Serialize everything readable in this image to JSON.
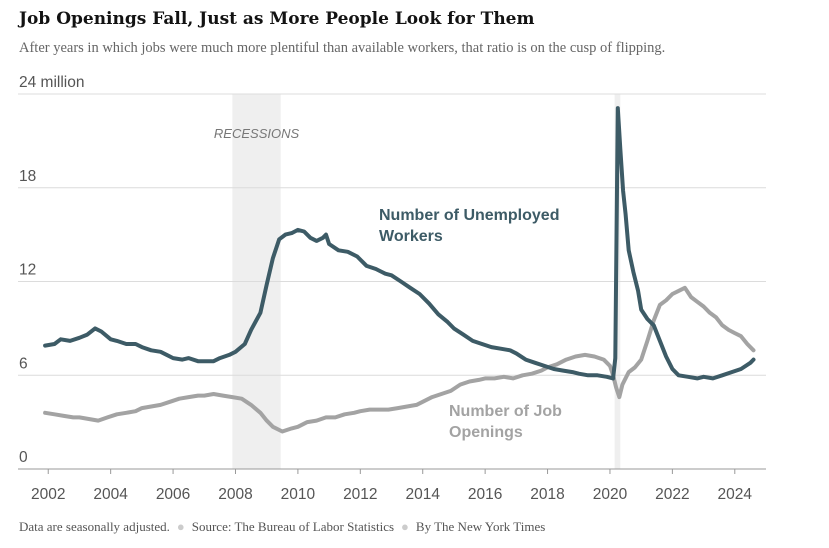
{
  "header": {
    "title": "Job Openings Fall, Just as More People Look for Them",
    "subtitle": "After years in which jobs were much more plentiful than available workers, that ratio is on the cusp of flipping."
  },
  "footer": {
    "note": "Data are seasonally adjusted.",
    "source": "Source: The Bureau of Labor Statistics",
    "credit": "By The New York Times"
  },
  "colors": {
    "unemployed": "#3d5b66",
    "openings": "#a3a3a3",
    "recession": "#efefef",
    "grid": "#dcdcdc",
    "axis": "#999999"
  },
  "chart_data": {
    "type": "line",
    "title": "Job Openings Fall, Just as More People Look for Them",
    "subtitle": "After years in which jobs were much more plentiful than available workers, that ratio is on the cusp of flipping.",
    "xlabel": "",
    "ylabel": "",
    "ylim": [
      0,
      24
    ],
    "xlim": [
      2001.8,
      2025.0
    ],
    "y_ticks": [
      0,
      6,
      12,
      18,
      24
    ],
    "y_tick_labels": [
      "0",
      "6",
      "12",
      "18",
      "24 million"
    ],
    "x_ticks": [
      2002,
      2004,
      2006,
      2008,
      2010,
      2012,
      2014,
      2016,
      2018,
      2020,
      2022,
      2024
    ],
    "x_tick_labels": [
      "2002",
      "2004",
      "2006",
      "2008",
      "2010",
      "2012",
      "2014",
      "2016",
      "2018",
      "2020",
      "2022",
      "2024"
    ],
    "grid": true,
    "recessions": {
      "label": "RECESSIONS",
      "periods": [
        [
          2007.9,
          2009.45
        ],
        [
          2020.15,
          2020.33
        ]
      ]
    },
    "series": [
      {
        "name": "Number of Unemployed Workers",
        "label_lines": [
          "Number of Unemployed",
          "Workers"
        ],
        "color": "#3d5b66",
        "x": [
          2001.9,
          2002.2,
          2002.4,
          2002.7,
          2003.0,
          2003.25,
          2003.5,
          2003.7,
          2004.0,
          2004.2,
          2004.5,
          2004.8,
          2005.0,
          2005.3,
          2005.6,
          2005.8,
          2006.0,
          2006.3,
          2006.5,
          2006.8,
          2007.0,
          2007.3,
          2007.5,
          2007.8,
          2008.0,
          2008.3,
          2008.5,
          2008.8,
          2009.0,
          2009.2,
          2009.4,
          2009.6,
          2009.8,
          2010.0,
          2010.2,
          2010.4,
          2010.6,
          2010.8,
          2010.9,
          2011.0,
          2011.3,
          2011.6,
          2011.9,
          2012.2,
          2012.5,
          2012.8,
          2013.0,
          2013.3,
          2013.6,
          2013.9,
          2014.2,
          2014.5,
          2014.8,
          2015.0,
          2015.3,
          2015.6,
          2015.9,
          2016.2,
          2016.5,
          2016.8,
          2017.0,
          2017.3,
          2017.6,
          2017.9,
          2018.2,
          2018.5,
          2018.8,
          2019.0,
          2019.3,
          2019.6,
          2019.9,
          2020.1,
          2020.17,
          2020.25,
          2020.33,
          2020.42,
          2020.5,
          2020.6,
          2020.75,
          2020.9,
          2021.0,
          2021.2,
          2021.4,
          2021.6,
          2021.8,
          2022.0,
          2022.2,
          2022.5,
          2022.8,
          2023.0,
          2023.3,
          2023.6,
          2023.9,
          2024.2,
          2024.5,
          2024.6
        ],
        "values": [
          7.9,
          8.0,
          8.3,
          8.2,
          8.4,
          8.6,
          9.0,
          8.8,
          8.3,
          8.2,
          8.0,
          8.0,
          7.8,
          7.6,
          7.5,
          7.3,
          7.1,
          7.0,
          7.1,
          6.9,
          6.9,
          6.9,
          7.1,
          7.3,
          7.5,
          8.0,
          8.9,
          10.0,
          11.8,
          13.5,
          14.7,
          15.0,
          15.1,
          15.3,
          15.2,
          14.8,
          14.6,
          14.8,
          15.0,
          14.4,
          14.0,
          13.9,
          13.6,
          13.0,
          12.8,
          12.5,
          12.4,
          12.0,
          11.6,
          11.2,
          10.6,
          9.9,
          9.4,
          9.0,
          8.6,
          8.2,
          8.0,
          7.8,
          7.7,
          7.6,
          7.4,
          7.0,
          6.8,
          6.6,
          6.4,
          6.3,
          6.2,
          6.1,
          6.0,
          6.0,
          5.9,
          5.8,
          7.1,
          23.1,
          20.5,
          17.8,
          16.3,
          14.0,
          12.6,
          11.4,
          10.2,
          9.6,
          9.2,
          8.2,
          7.2,
          6.4,
          6.0,
          5.9,
          5.8,
          5.9,
          5.8,
          6.0,
          6.2,
          6.4,
          6.8,
          7.0
        ]
      },
      {
        "name": "Number of Job Openings",
        "label_lines": [
          "Number of Job",
          "Openings"
        ],
        "color": "#a3a3a3",
        "x": [
          2001.9,
          2002.2,
          2002.5,
          2002.8,
          2003.0,
          2003.3,
          2003.6,
          2003.9,
          2004.2,
          2004.5,
          2004.8,
          2005.0,
          2005.3,
          2005.6,
          2005.9,
          2006.2,
          2006.5,
          2006.8,
          2007.0,
          2007.3,
          2007.6,
          2007.9,
          2008.2,
          2008.5,
          2008.8,
          2009.0,
          2009.2,
          2009.5,
          2009.8,
          2010.0,
          2010.3,
          2010.6,
          2010.9,
          2011.2,
          2011.5,
          2011.8,
          2012.0,
          2012.3,
          2012.6,
          2012.9,
          2013.2,
          2013.5,
          2013.8,
          2014.0,
          2014.3,
          2014.6,
          2014.9,
          2015.2,
          2015.5,
          2015.8,
          2016.0,
          2016.3,
          2016.6,
          2016.9,
          2017.2,
          2017.5,
          2017.8,
          2018.0,
          2018.3,
          2018.6,
          2018.9,
          2019.2,
          2019.5,
          2019.8,
          2020.0,
          2020.1,
          2020.2,
          2020.3,
          2020.4,
          2020.6,
          2020.8,
          2021.0,
          2021.2,
          2021.4,
          2021.6,
          2021.8,
          2022.0,
          2022.2,
          2022.4,
          2022.6,
          2022.8,
          2023.0,
          2023.2,
          2023.4,
          2023.6,
          2023.8,
          2024.0,
          2024.2,
          2024.4,
          2024.6
        ],
        "values": [
          3.6,
          3.5,
          3.4,
          3.3,
          3.3,
          3.2,
          3.1,
          3.3,
          3.5,
          3.6,
          3.7,
          3.9,
          4.0,
          4.1,
          4.3,
          4.5,
          4.6,
          4.7,
          4.7,
          4.8,
          4.7,
          4.6,
          4.5,
          4.1,
          3.6,
          3.1,
          2.7,
          2.4,
          2.6,
          2.7,
          3.0,
          3.1,
          3.3,
          3.3,
          3.5,
          3.6,
          3.7,
          3.8,
          3.8,
          3.8,
          3.9,
          4.0,
          4.1,
          4.3,
          4.6,
          4.8,
          5.0,
          5.4,
          5.6,
          5.7,
          5.8,
          5.8,
          5.9,
          5.8,
          6.0,
          6.1,
          6.3,
          6.5,
          6.7,
          7.0,
          7.2,
          7.3,
          7.2,
          7.0,
          6.6,
          6.0,
          5.2,
          4.6,
          5.4,
          6.2,
          6.5,
          7.0,
          8.2,
          9.5,
          10.5,
          10.8,
          11.2,
          11.4,
          11.6,
          11.0,
          10.7,
          10.4,
          10.0,
          9.7,
          9.2,
          8.9,
          8.7,
          8.5,
          8.0,
          7.6
        ]
      }
    ]
  }
}
